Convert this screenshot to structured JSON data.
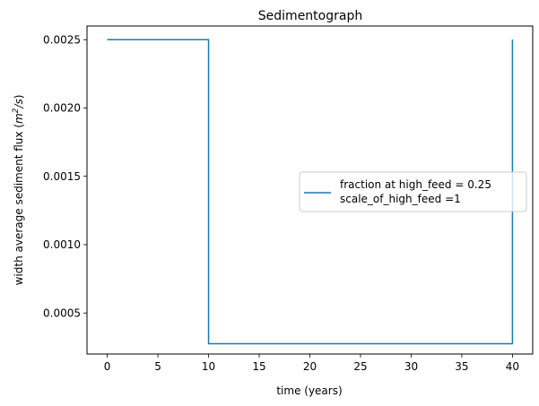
{
  "chart_data": {
    "type": "line",
    "title": "Sedimentograph",
    "xlabel": "time (years)",
    "ylabel": {
      "prefix": "width average sediment flux (",
      "unit_base": "m",
      "unit_exp": "2",
      "unit_suffix": "/s",
      "suffix": ")"
    },
    "xlim": [
      -2,
      42
    ],
    "ylim": [
      0.0002,
      0.0026
    ],
    "xticks": [
      {
        "value": 0,
        "label": "0"
      },
      {
        "value": 5,
        "label": "5"
      },
      {
        "value": 10,
        "label": "10"
      },
      {
        "value": 15,
        "label": "15"
      },
      {
        "value": 20,
        "label": "20"
      },
      {
        "value": 25,
        "label": "25"
      },
      {
        "value": 30,
        "label": "30"
      },
      {
        "value": 35,
        "label": "35"
      },
      {
        "value": 40,
        "label": "40"
      }
    ],
    "yticks": [
      {
        "value": 0.0005,
        "label": "0.0005"
      },
      {
        "value": 0.001,
        "label": "0.0010"
      },
      {
        "value": 0.0015,
        "label": "0.0015"
      },
      {
        "value": 0.002,
        "label": "0.0020"
      },
      {
        "value": 0.0025,
        "label": "0.0025"
      }
    ],
    "grid": false,
    "legend_position": "center-right",
    "series": [
      {
        "name_lines": [
          "fraction at high_feed = 0.25",
          "scale_of_high_feed =1"
        ],
        "color": "#1f77b4",
        "x": [
          0,
          10,
          10,
          40,
          40
        ],
        "y": [
          0.0025,
          0.0025,
          0.000275,
          0.000275,
          0.0025
        ]
      }
    ]
  }
}
